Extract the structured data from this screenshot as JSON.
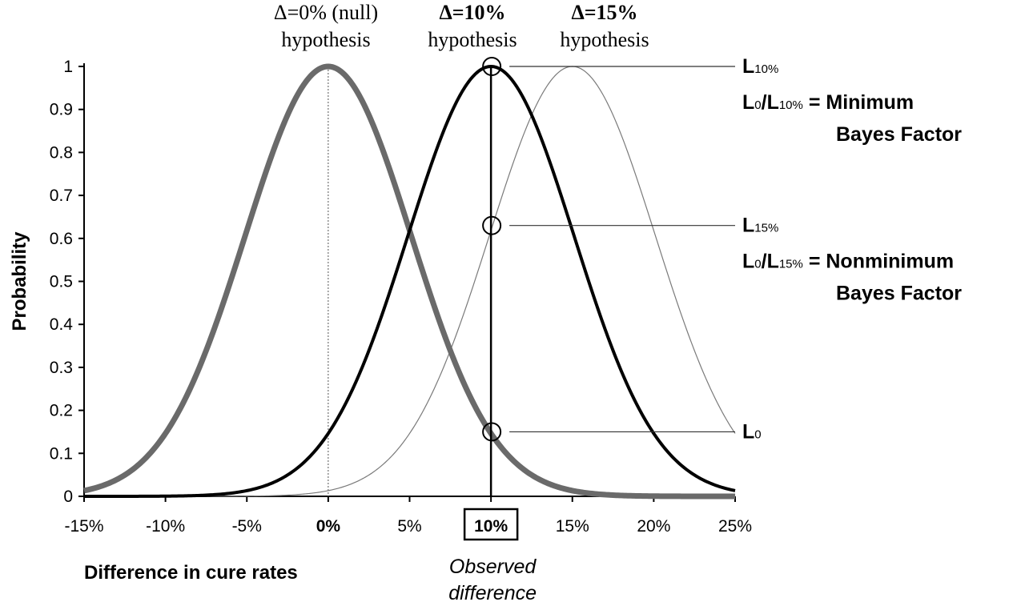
{
  "chart_data": {
    "type": "line",
    "xlabel": "Difference in cure rates",
    "ylabel": "Probability",
    "xlim": [
      -15,
      25
    ],
    "ylim": [
      0,
      1
    ],
    "x_ticks": [
      -15,
      -10,
      -5,
      0,
      5,
      10,
      15,
      20,
      25
    ],
    "x_tick_labels": [
      "-15%",
      "-10%",
      "-5%",
      "0%",
      "5%",
      "10%",
      "15%",
      "20%",
      "25%"
    ],
    "y_ticks": [
      0,
      0.1,
      0.2,
      0.3,
      0.4,
      0.5,
      0.6,
      0.7,
      0.8,
      0.9,
      1
    ],
    "y_tick_labels": [
      "0",
      "0.1",
      "0.2",
      "0.3",
      "0.4",
      "0.5",
      "0.6",
      "0.7",
      "0.8",
      "0.9",
      "1"
    ],
    "emphasized_x_tick": "0%",
    "boxed_x_tick": "10%",
    "series": [
      {
        "mean": 0,
        "sd": 5.1,
        "peak": 1,
        "color": "#6a6a6a",
        "style": "thick-gray",
        "label_lines": [
          "Δ=0% (null)",
          "hypothesis"
        ],
        "label_bold": false
      },
      {
        "mean": 10,
        "sd": 5.1,
        "peak": 1,
        "color": "#000000",
        "style": "thick-black",
        "label_lines": [
          "Δ=10%",
          "hypothesis"
        ],
        "label_bold": true
      },
      {
        "mean": 15,
        "sd": 5.1,
        "peak": 1,
        "color": "#7a7a7a",
        "style": "thin",
        "label_lines": [
          "Δ=15%",
          "hypothesis"
        ],
        "label_bold": true
      }
    ],
    "observed_x": 10,
    "observed_label": [
      "Observed",
      "difference"
    ],
    "likelihood_points": [
      {
        "y": 1.0,
        "main": "L",
        "sub": "10%"
      },
      {
        "y": 0.63,
        "main": "L",
        "sub": "15%"
      },
      {
        "y": 0.15,
        "main": "L",
        "sub": "0"
      }
    ],
    "annotations": [
      {
        "parts": [
          [
            "L",
            "main"
          ],
          [
            "0",
            "sub"
          ],
          [
            "/L",
            "main"
          ],
          [
            "10%",
            "sub"
          ],
          [
            " = Minimum",
            "main"
          ]
        ],
        "second_line": "Bayes Factor"
      },
      {
        "parts": [
          [
            "L",
            "main"
          ],
          [
            "0",
            "sub"
          ],
          [
            "/L",
            "main"
          ],
          [
            "15%",
            "sub"
          ],
          [
            " = Nonminimum",
            "main"
          ]
        ],
        "second_line": "Bayes Factor"
      }
    ],
    "grid": false,
    "legend": "none"
  }
}
